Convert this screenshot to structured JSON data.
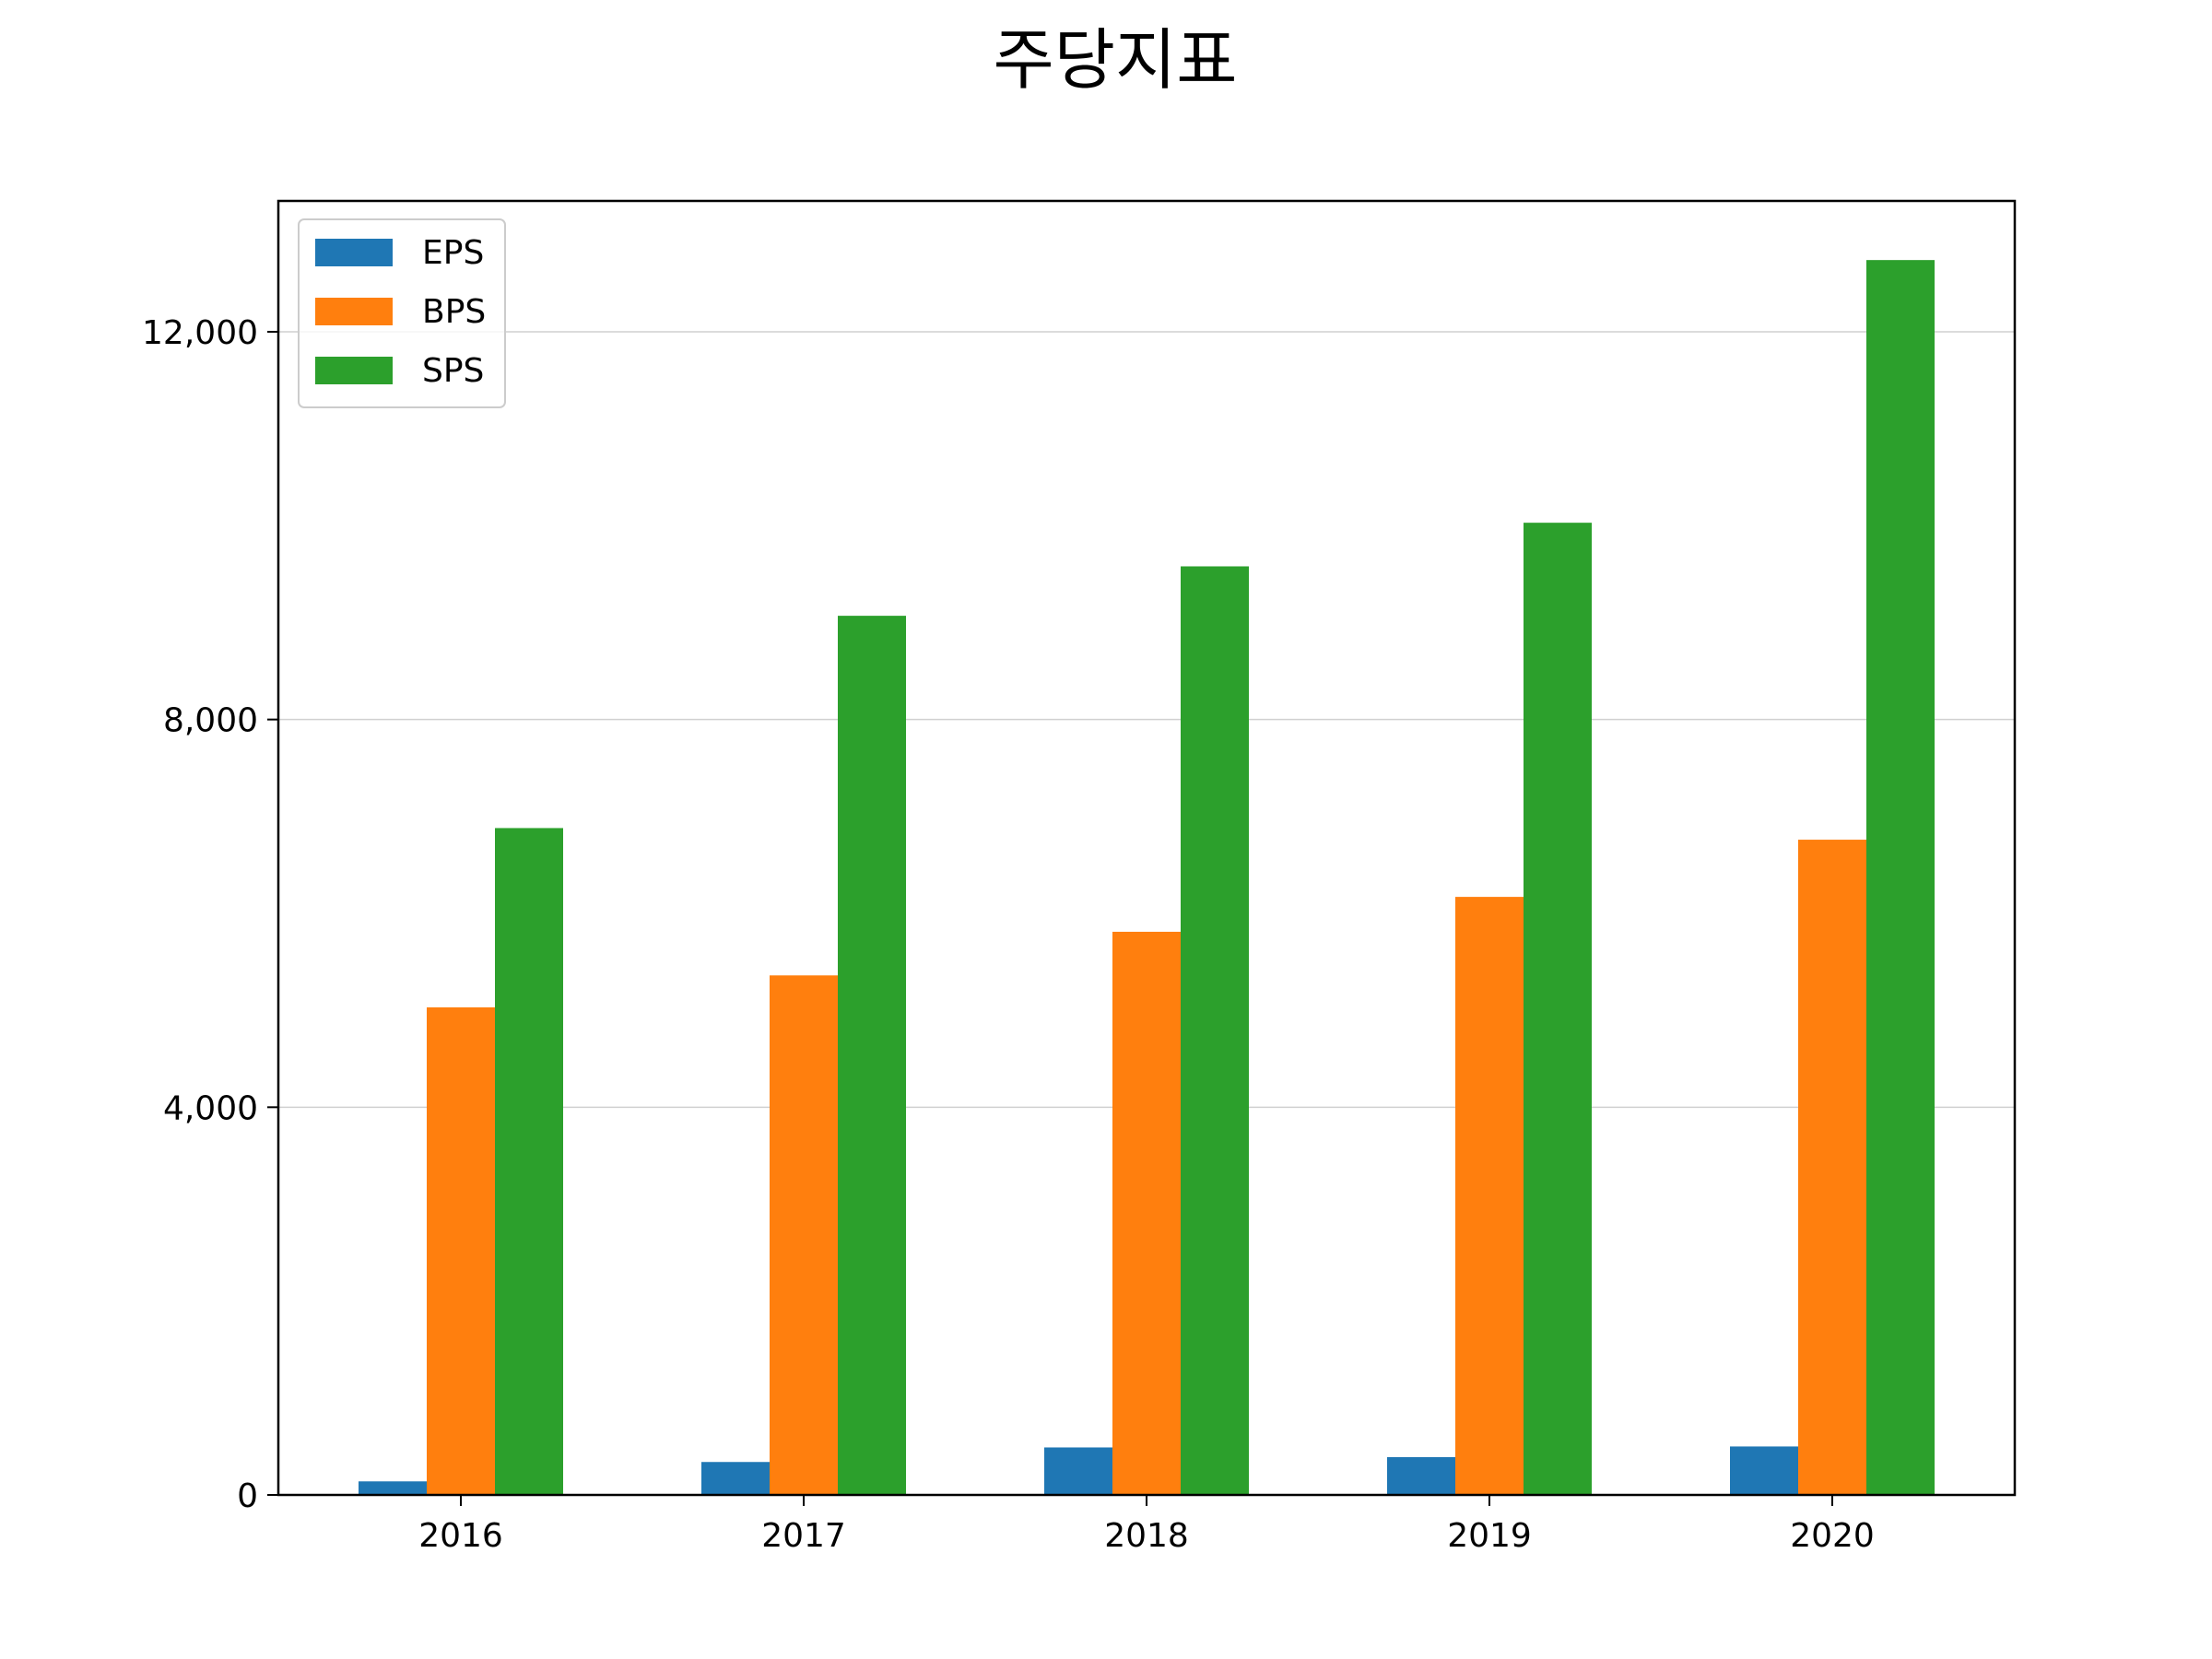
{
  "chart_data": {
    "type": "bar",
    "title": "주당지표",
    "xlabel": "",
    "ylabel": "",
    "categories": [
      "2016",
      "2017",
      "2018",
      "2019",
      "2020"
    ],
    "series": [
      {
        "name": "EPS",
        "color": "#1f77b4",
        "values": [
          140,
          340,
          490,
          390,
          500
        ]
      },
      {
        "name": "BPS",
        "color": "#ff7f0e",
        "values": [
          5030,
          5360,
          5810,
          6170,
          6760
        ]
      },
      {
        "name": "SPS",
        "color": "#2ca02c",
        "values": [
          6880,
          9070,
          9580,
          10030,
          12740
        ]
      }
    ],
    "ylim": [
      0,
      13350
    ],
    "yticks": [
      0,
      4000,
      8000,
      12000
    ],
    "ytick_labels": [
      "0",
      "4,000",
      "8,000",
      "12,000"
    ],
    "grid": "horizontal",
    "legend_position": "top-left"
  }
}
